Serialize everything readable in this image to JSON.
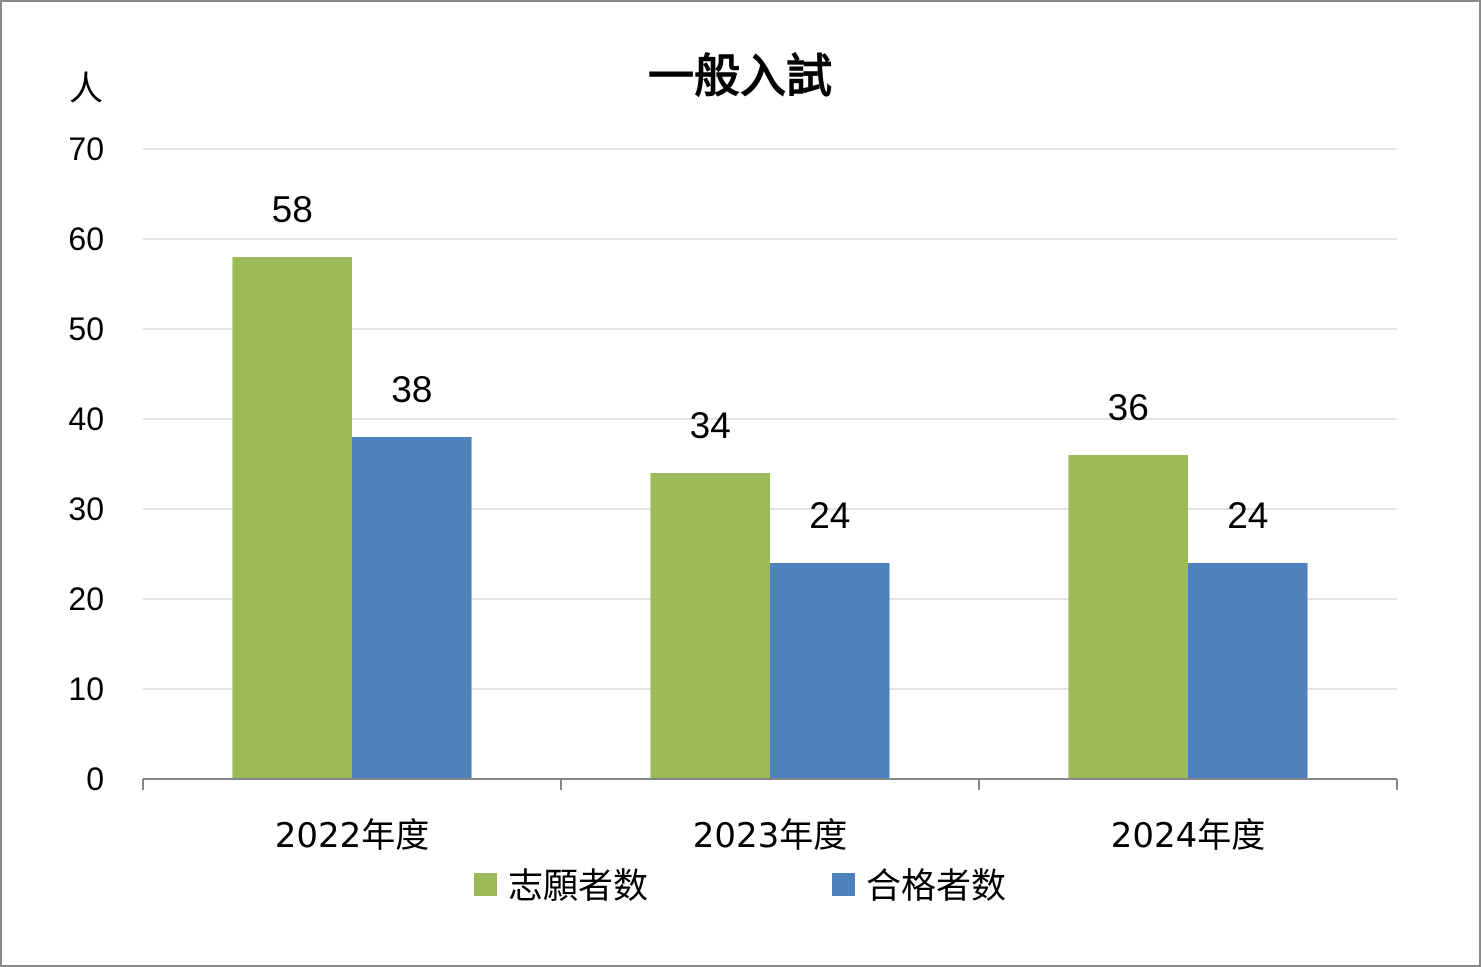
{
  "chart_data": {
    "type": "bar",
    "title": "一般入試",
    "ylabel": "人",
    "xlabel": "",
    "categories": [
      "2022年度",
      "2023年度",
      "2024年度"
    ],
    "series": [
      {
        "name": "志願者数",
        "color": "#9BBB59",
        "values": [
          58,
          34,
          36
        ]
      },
      {
        "name": "合格者数",
        "color": "#4F81BD",
        "values": [
          38,
          24,
          24
        ]
      }
    ],
    "ylim": [
      0,
      70
    ],
    "yticks": [
      0,
      10,
      20,
      30,
      40,
      50,
      60,
      70
    ],
    "grid": true,
    "data_labels": true,
    "legend": "bottom",
    "gridline_color": "#D9D9D9",
    "axis_color": "#868686"
  }
}
